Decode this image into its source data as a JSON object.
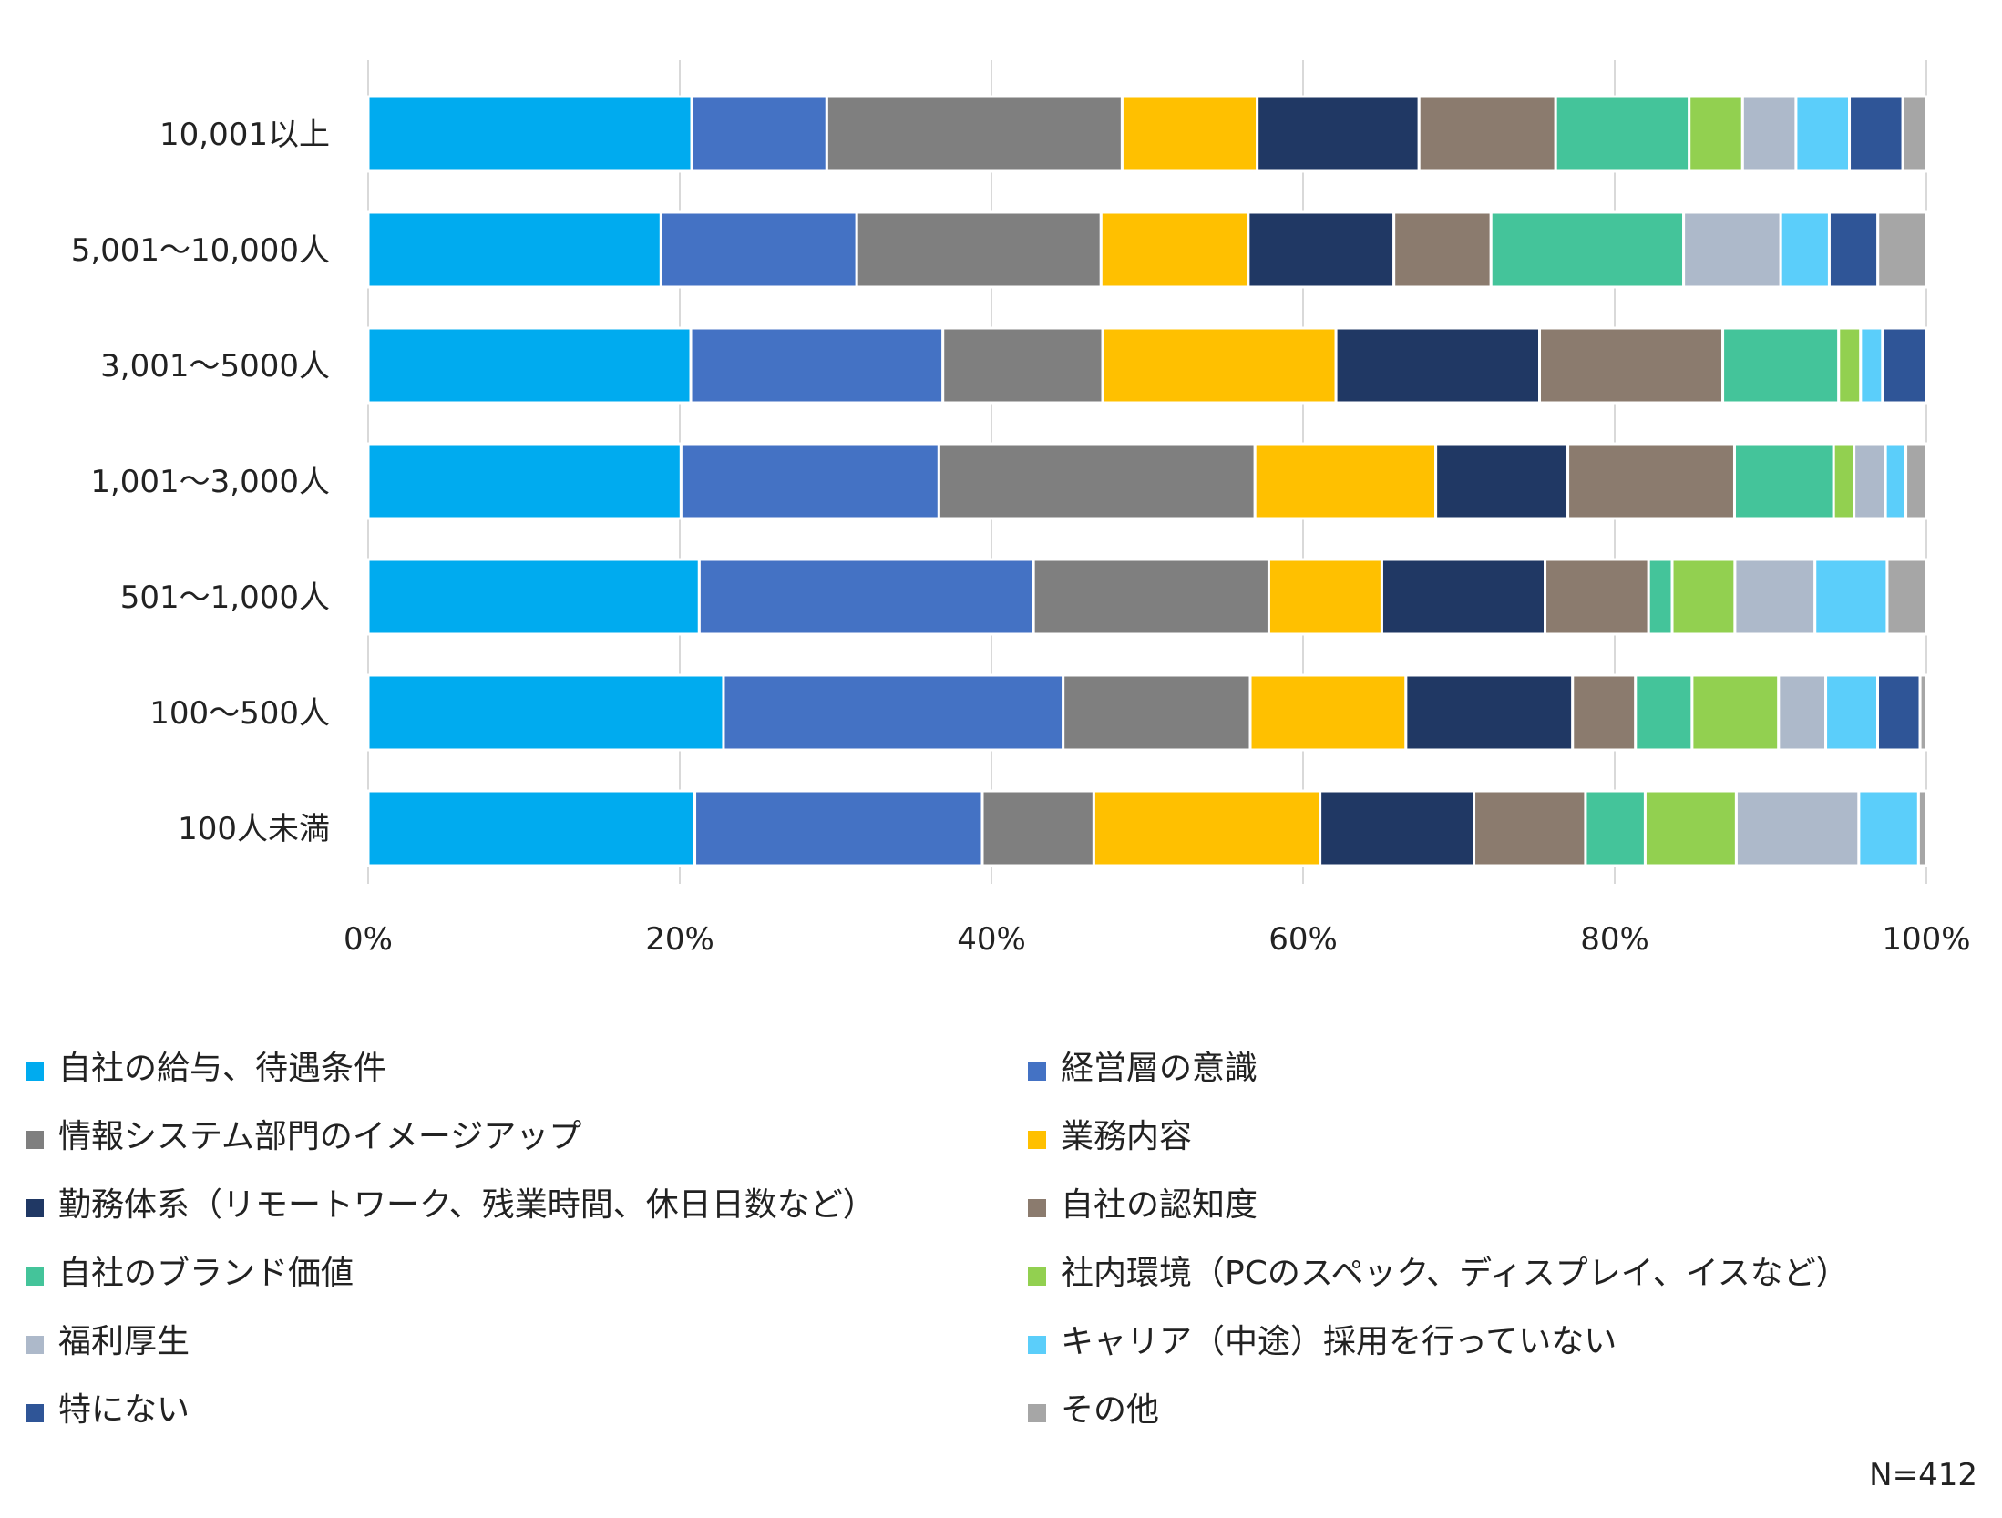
{
  "chart_data": {
    "type": "bar",
    "orientation": "horizontal",
    "stacking": "percent",
    "categories": [
      "10,001以上",
      "5,001～10,000人",
      "3,001～5000人",
      "1,001～3,000人",
      "501～1,000人",
      "100～500人",
      "100人未満"
    ],
    "x_ticks": [
      "0%",
      "20%",
      "40%",
      "60%",
      "80%",
      "100%"
    ],
    "xlim": [
      0,
      100
    ],
    "grid": true,
    "legend_position": "bottom",
    "series": [
      {
        "name": "自社の給与、待遇条件",
        "color": "#00ABEF",
        "values": [
          20.6,
          18.7,
          20.6,
          19.9,
          21.1,
          22.6,
          20.8
        ]
      },
      {
        "name": "経営層の意識",
        "color": "#4472C4",
        "values": [
          8.6,
          12.5,
          16.1,
          16.4,
          21.3,
          21.6,
          18.3
        ]
      },
      {
        "name": "情報システム部門のイメージアップ",
        "color": "#7F7F7F",
        "values": [
          18.8,
          15.6,
          10.2,
          20.1,
          15.0,
          11.9,
          7.1
        ]
      },
      {
        "name": "業務内容",
        "color": "#FFC000",
        "values": [
          8.6,
          9.4,
          14.9,
          11.5,
          7.2,
          9.9,
          14.4
        ]
      },
      {
        "name": "勤務体系（リモートワーク、残業時間、休日日数など）",
        "color": "#203864",
        "values": [
          10.3,
          9.3,
          13.0,
          8.4,
          10.4,
          10.6,
          9.8
        ]
      },
      {
        "name": "自社の認知度",
        "color": "#8B7B6E",
        "values": [
          8.7,
          6.2,
          11.7,
          10.6,
          6.6,
          4.0,
          7.1
        ]
      },
      {
        "name": "自社のブランド価値",
        "color": "#44C49A",
        "values": [
          8.5,
          12.3,
          7.4,
          6.3,
          1.5,
          3.6,
          3.8
        ]
      },
      {
        "name": "社内環境（PCのスペック、ディスプレイ、イスなど）",
        "color": "#92D050",
        "values": [
          3.4,
          0,
          1.4,
          1.3,
          4.0,
          5.5,
          5.8
        ]
      },
      {
        "name": "福利厚生",
        "color": "#ADB9CA",
        "values": [
          3.4,
          6.2,
          0,
          2.0,
          5.1,
          3.0,
          7.8
        ]
      },
      {
        "name": "キャリア（中途）採用を行っていない",
        "color": "#5BCEFA",
        "values": [
          3.4,
          3.1,
          1.4,
          1.3,
          4.6,
          3.3,
          3.8
        ]
      },
      {
        "name": "特にない",
        "color": "#2F5597",
        "values": [
          3.4,
          3.1,
          2.8,
          0,
          0,
          2.7,
          0
        ]
      },
      {
        "name": "その他",
        "color": "#A6A6A6",
        "values": [
          1.5,
          3.1,
          0,
          1.3,
          2.5,
          0.4,
          0.5
        ]
      }
    ],
    "annotation": "N=412"
  }
}
